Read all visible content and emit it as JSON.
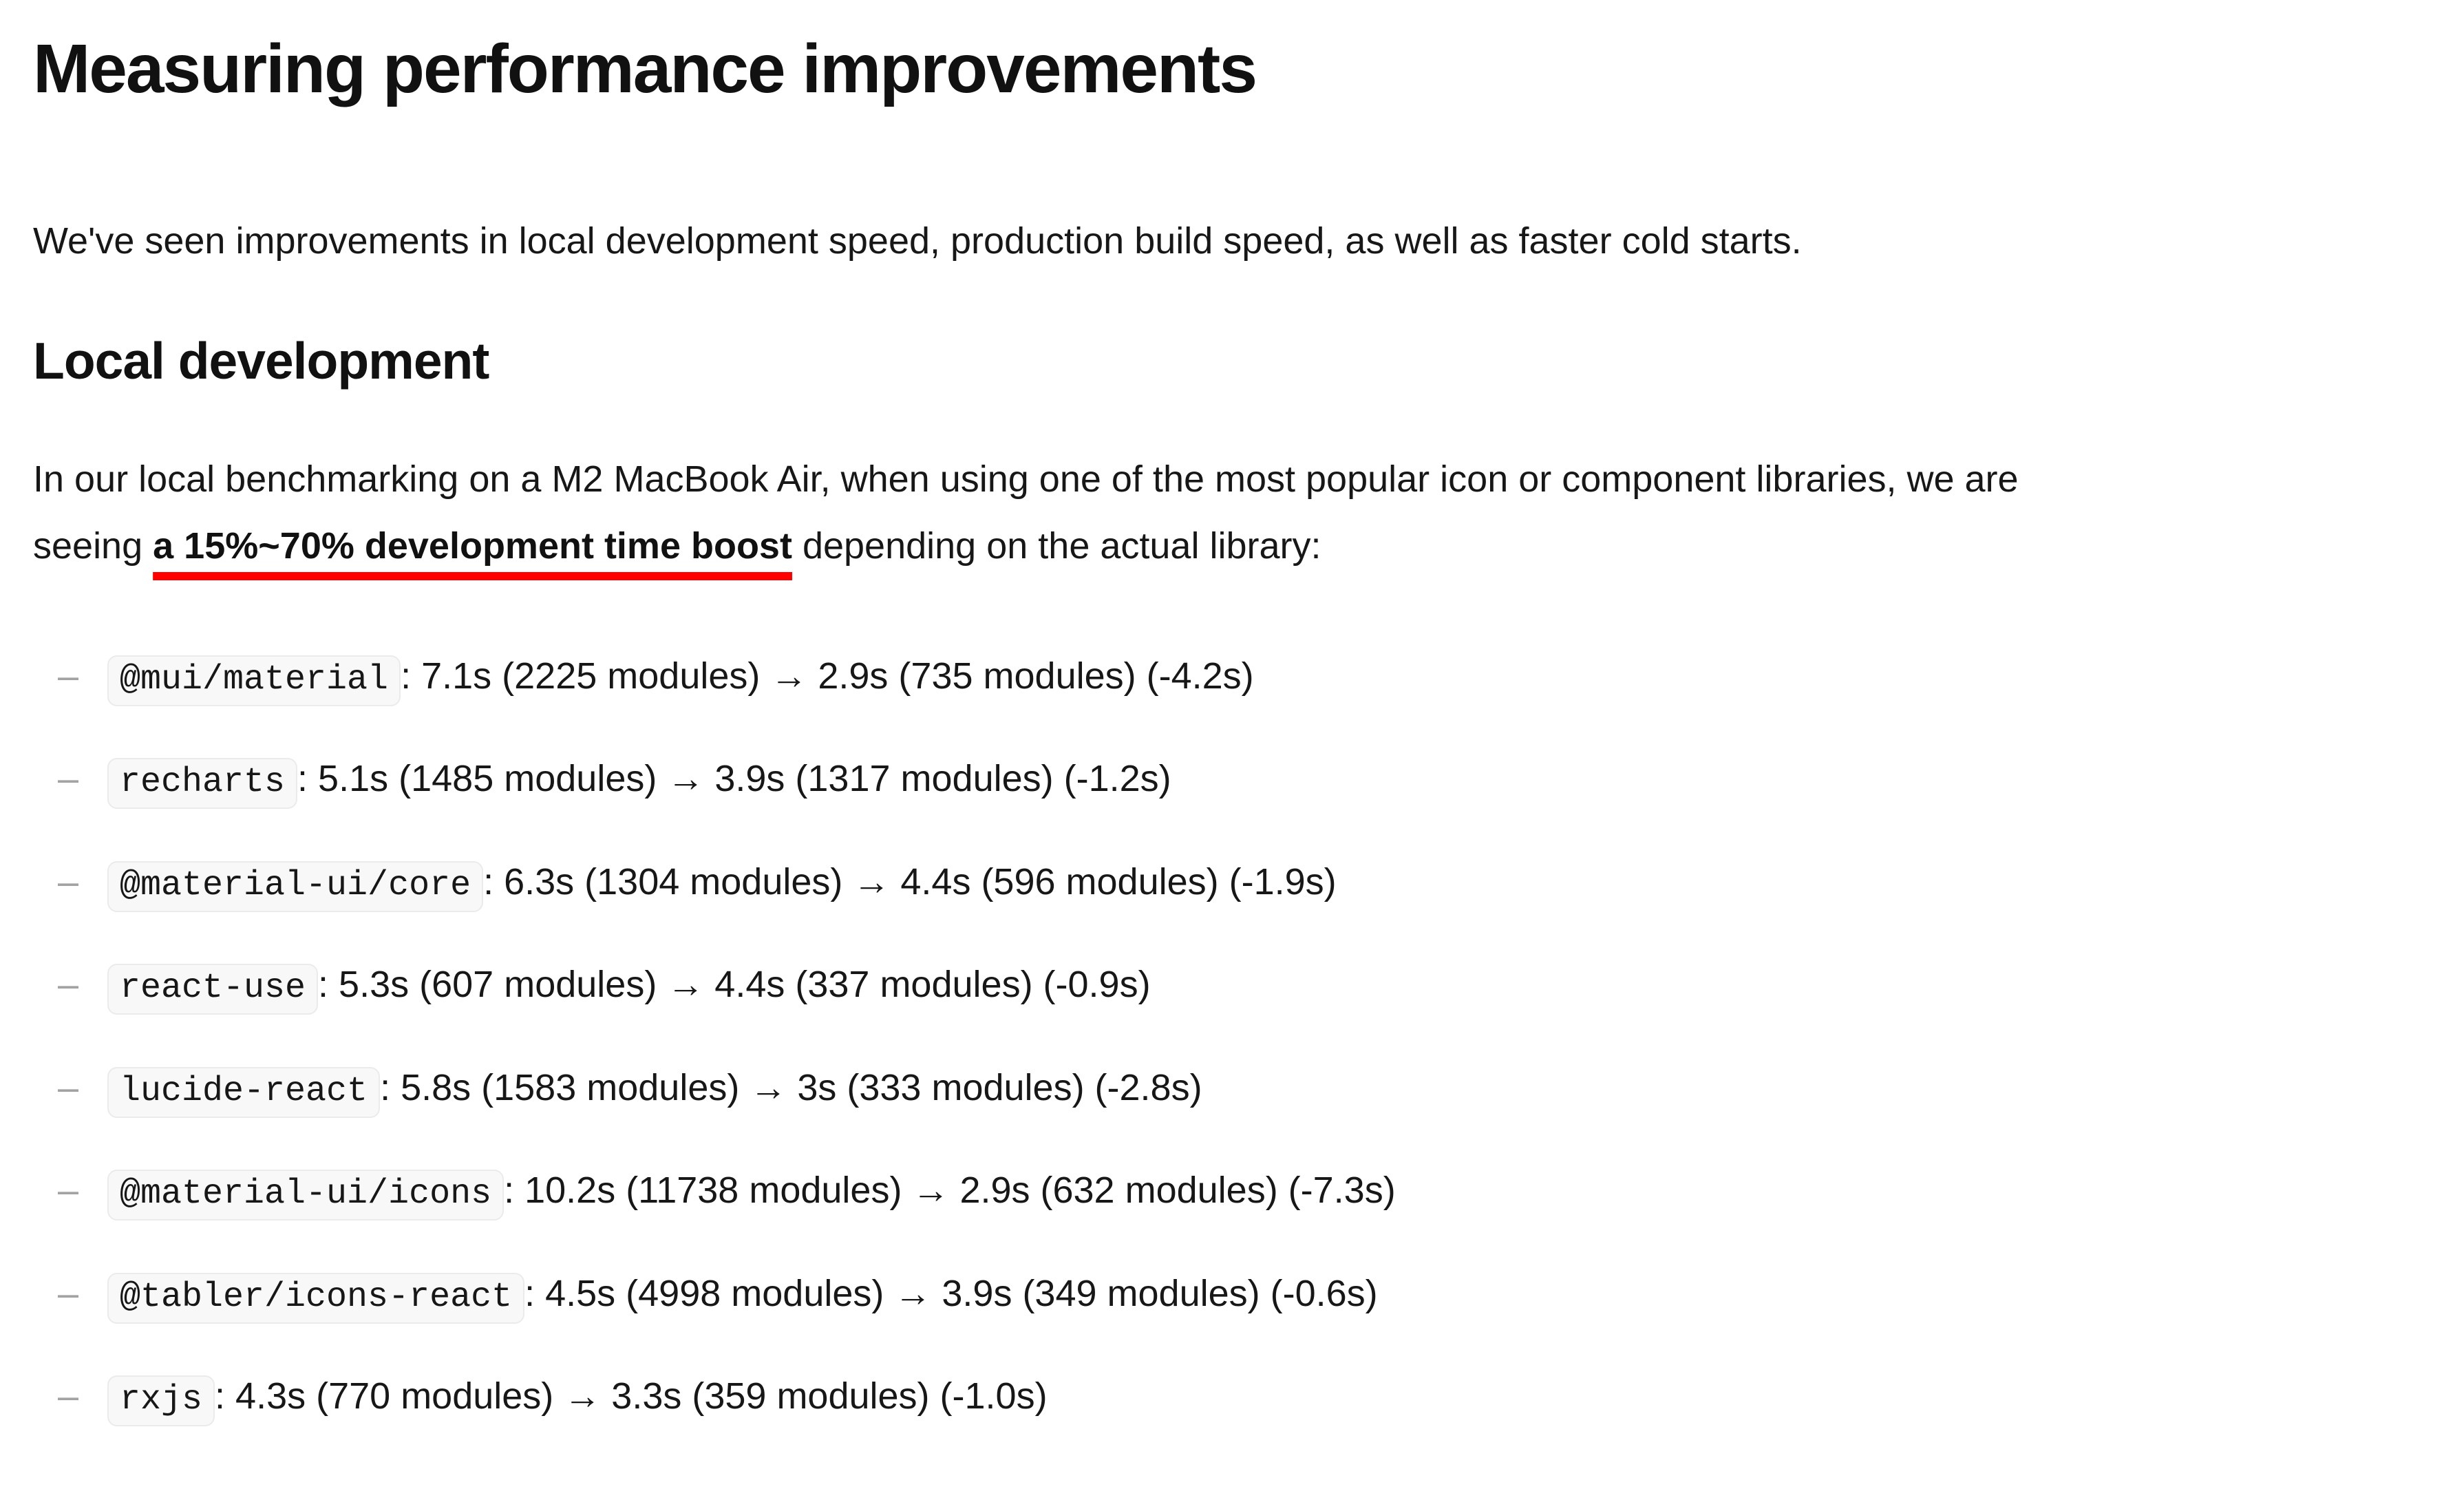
{
  "document": {
    "title": "Measuring performance improvements",
    "intro": "We've seen improvements in local development speed, production build speed, as well as faster cold starts.",
    "local_dev": {
      "heading": "Local development",
      "paragraph": {
        "line1": "In our local benchmarking on a M2 MacBook Air, when using one of the most popular icon or component libraries, we are",
        "line2_prefix": "seeing ",
        "highlight": "a 15%~70% development time boost",
        "line2_suffix": " depending on the actual library:"
      },
      "bullet_char": "–",
      "benchmarks": [
        {
          "library": "@mui/material",
          "result": ": 7.1s (2225 modules) → 2.9s (735 modules) (-4.2s)"
        },
        {
          "library": "recharts",
          "result": ": 5.1s (1485 modules) → 3.9s (1317 modules) (-1.2s)"
        },
        {
          "library": "@material-ui/core",
          "result": ": 6.3s (1304 modules) → 4.4s (596 modules) (-1.9s)"
        },
        {
          "library": "react-use",
          "result": ": 5.3s (607 modules) → 4.4s (337 modules) (-0.9s)"
        },
        {
          "library": "lucide-react",
          "result": ": 5.8s (1583 modules) → 3s (333 modules) (-2.8s)"
        },
        {
          "library": "@material-ui/icons",
          "result": ": 10.2s (11738 modules) → 2.9s (632 modules) (-7.3s)"
        },
        {
          "library": "@tabler/icons-react",
          "result": ": 4.5s (4998 modules) → 3.9s (349 modules) (-0.6s)"
        },
        {
          "library": "rxjs",
          "result": ": 4.3s (770 modules) → 3.3s (359 modules) (-1.0s)"
        }
      ]
    },
    "colors": {
      "text": "#171717",
      "underline_red": "#ff0000",
      "bullet_gray": "#a3a3a3",
      "code_background": "#f8f8f8",
      "code_border": "#ebebeb"
    }
  }
}
